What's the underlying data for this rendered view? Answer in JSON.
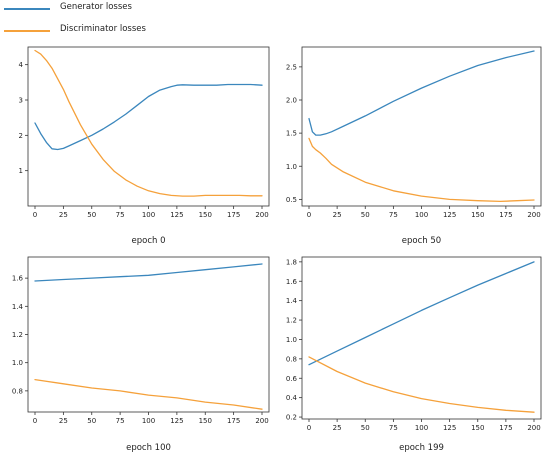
{
  "legend": {
    "items": [
      {
        "label": "Generator losses",
        "color": "#3b87bd"
      },
      {
        "label": "Discriminator losses",
        "color": "#f5a13b"
      }
    ]
  },
  "colors": {
    "generator": "#3b87bd",
    "discriminator": "#f5a13b",
    "axis": "#333333"
  },
  "chart_data": [
    {
      "type": "line",
      "title": "epoch 0",
      "xlim": [
        0,
        200
      ],
      "ylim": [
        0,
        4.5
      ],
      "xticks": [
        0,
        25,
        50,
        75,
        100,
        125,
        150,
        175,
        200
      ],
      "yticks": [
        1,
        2,
        3,
        4
      ],
      "grid": false,
      "series": [
        {
          "name": "Generator losses",
          "x": [
            0,
            5,
            10,
            15,
            20,
            25,
            30,
            40,
            50,
            60,
            70,
            80,
            90,
            100,
            110,
            120,
            125,
            130,
            140,
            150,
            160,
            170,
            180,
            190,
            200
          ],
          "values": [
            2.35,
            2.05,
            1.8,
            1.62,
            1.6,
            1.63,
            1.7,
            1.85,
            2.0,
            2.18,
            2.38,
            2.6,
            2.85,
            3.1,
            3.28,
            3.38,
            3.42,
            3.43,
            3.42,
            3.42,
            3.42,
            3.44,
            3.44,
            3.44,
            3.42
          ]
        },
        {
          "name": "Discriminator losses",
          "x": [
            0,
            5,
            10,
            15,
            20,
            25,
            30,
            40,
            50,
            60,
            70,
            80,
            90,
            100,
            110,
            120,
            130,
            140,
            150,
            160,
            170,
            180,
            190,
            200
          ],
          "values": [
            4.4,
            4.3,
            4.12,
            3.9,
            3.6,
            3.3,
            2.95,
            2.3,
            1.75,
            1.32,
            0.98,
            0.74,
            0.56,
            0.43,
            0.35,
            0.3,
            0.28,
            0.28,
            0.3,
            0.3,
            0.3,
            0.3,
            0.29,
            0.29
          ]
        }
      ]
    },
    {
      "type": "line",
      "title": "epoch 50",
      "xlim": [
        0,
        200
      ],
      "ylim": [
        0.4,
        2.8
      ],
      "xticks": [
        0,
        25,
        50,
        75,
        100,
        125,
        150,
        175,
        200
      ],
      "yticks": [
        0.5,
        1.0,
        1.5,
        2.0,
        2.5
      ],
      "grid": false,
      "series": [
        {
          "name": "Generator losses",
          "x": [
            0,
            3,
            6,
            10,
            15,
            20,
            30,
            50,
            75,
            100,
            125,
            150,
            175,
            200
          ],
          "values": [
            1.72,
            1.52,
            1.47,
            1.47,
            1.49,
            1.52,
            1.6,
            1.76,
            1.98,
            2.18,
            2.36,
            2.52,
            2.64,
            2.74
          ]
        },
        {
          "name": "Discriminator losses",
          "x": [
            0,
            3,
            6,
            10,
            15,
            20,
            30,
            50,
            75,
            100,
            125,
            150,
            170,
            185,
            200
          ],
          "values": [
            1.42,
            1.3,
            1.25,
            1.2,
            1.12,
            1.03,
            0.92,
            0.76,
            0.63,
            0.55,
            0.5,
            0.48,
            0.47,
            0.48,
            0.49
          ]
        }
      ]
    },
    {
      "type": "line",
      "title": "epoch 100",
      "xlim": [
        0,
        200
      ],
      "ylim": [
        0.65,
        1.75
      ],
      "xticks": [
        0,
        25,
        50,
        75,
        100,
        125,
        150,
        175,
        200
      ],
      "yticks": [
        0.8,
        1.0,
        1.2,
        1.4,
        1.6
      ],
      "grid": false,
      "series": [
        {
          "name": "Generator losses",
          "x": [
            0,
            25,
            50,
            75,
            100,
            125,
            150,
            175,
            200
          ],
          "values": [
            1.58,
            1.59,
            1.6,
            1.61,
            1.62,
            1.64,
            1.66,
            1.68,
            1.7
          ]
        },
        {
          "name": "Discriminator losses",
          "x": [
            0,
            25,
            50,
            75,
            100,
            125,
            150,
            175,
            200
          ],
          "values": [
            0.88,
            0.85,
            0.82,
            0.8,
            0.77,
            0.75,
            0.72,
            0.7,
            0.67
          ]
        }
      ]
    },
    {
      "type": "line",
      "title": "epoch 199",
      "xlim": [
        0,
        200
      ],
      "ylim": [
        0.18,
        1.85
      ],
      "xticks": [
        0,
        25,
        50,
        75,
        100,
        125,
        150,
        175,
        200
      ],
      "yticks": [
        0.2,
        0.4,
        0.6,
        0.8,
        1.0,
        1.2,
        1.4,
        1.6,
        1.8
      ],
      "grid": false,
      "series": [
        {
          "name": "Generator losses",
          "x": [
            0,
            25,
            50,
            75,
            100,
            125,
            150,
            175,
            200
          ],
          "values": [
            0.74,
            0.88,
            1.02,
            1.16,
            1.3,
            1.43,
            1.56,
            1.68,
            1.8
          ]
        },
        {
          "name": "Discriminator losses",
          "x": [
            0,
            25,
            50,
            75,
            100,
            125,
            150,
            175,
            200
          ],
          "values": [
            0.82,
            0.67,
            0.55,
            0.46,
            0.39,
            0.34,
            0.3,
            0.27,
            0.25
          ]
        }
      ]
    }
  ]
}
